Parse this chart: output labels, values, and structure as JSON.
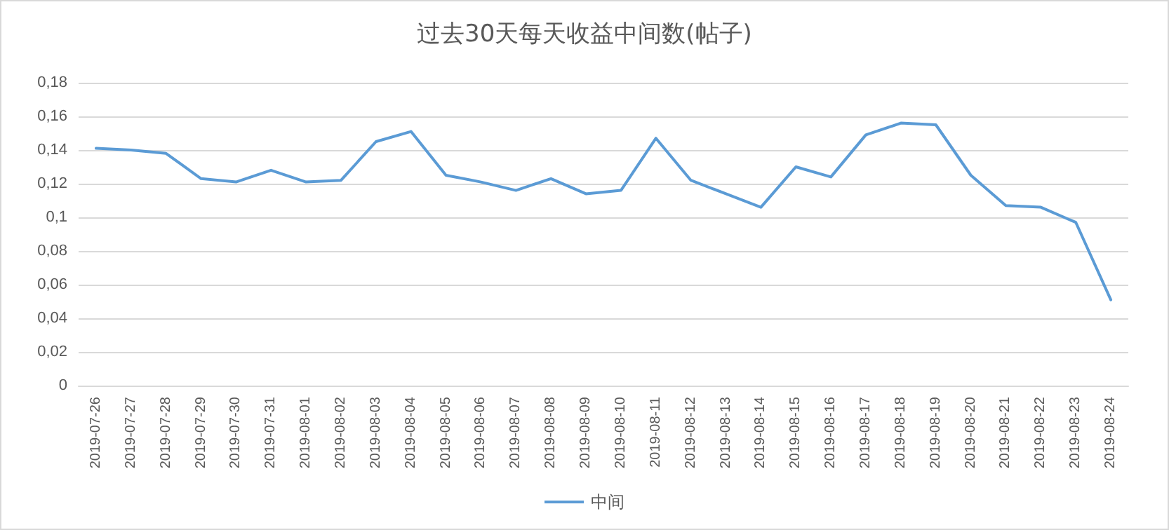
{
  "chart_data": {
    "type": "line",
    "title": "过去30天每天收益中间数(帖子)",
    "categories": [
      "2019-07-26",
      "2019-07-27",
      "2019-07-28",
      "2019-07-29",
      "2019-07-30",
      "2019-07-31",
      "2019-08-01",
      "2019-08-02",
      "2019-08-03",
      "2019-08-04",
      "2019-08-05",
      "2019-08-06",
      "2019-08-07",
      "2019-08-08",
      "2019-08-09",
      "2019-08-10",
      "2019-08-11",
      "2019-08-12",
      "2019-08-13",
      "2019-08-14",
      "2019-08-15",
      "2019-08-16",
      "2019-08-17",
      "2019-08-18",
      "2019-08-19",
      "2019-08-20",
      "2019-08-21",
      "2019-08-22",
      "2019-08-23",
      "2019-08-24"
    ],
    "series": [
      {
        "name": "中间",
        "color": "#5b9bd5",
        "values": [
          0.141,
          0.14,
          0.138,
          0.123,
          0.121,
          0.128,
          0.121,
          0.122,
          0.145,
          0.151,
          0.125,
          0.121,
          0.116,
          0.123,
          0.114,
          0.116,
          0.147,
          0.122,
          0.114,
          0.106,
          0.13,
          0.124,
          0.149,
          0.156,
          0.155,
          0.125,
          0.107,
          0.106,
          0.097,
          0.051
        ]
      }
    ],
    "ylim": [
      0,
      0.18
    ],
    "yticks": [
      {
        "value": 0,
        "label": "0"
      },
      {
        "value": 0.02,
        "label": "0,02"
      },
      {
        "value": 0.04,
        "label": "0,04"
      },
      {
        "value": 0.06,
        "label": "0,06"
      },
      {
        "value": 0.08,
        "label": "0,08"
      },
      {
        "value": 0.1,
        "label": "0,1"
      },
      {
        "value": 0.12,
        "label": "0,12"
      },
      {
        "value": 0.14,
        "label": "0,14"
      },
      {
        "value": 0.16,
        "label": "0,16"
      },
      {
        "value": 0.18,
        "label": "0,18"
      }
    ],
    "grid": "y",
    "legend": "bottom",
    "marker": "none",
    "line_style": "solid"
  }
}
